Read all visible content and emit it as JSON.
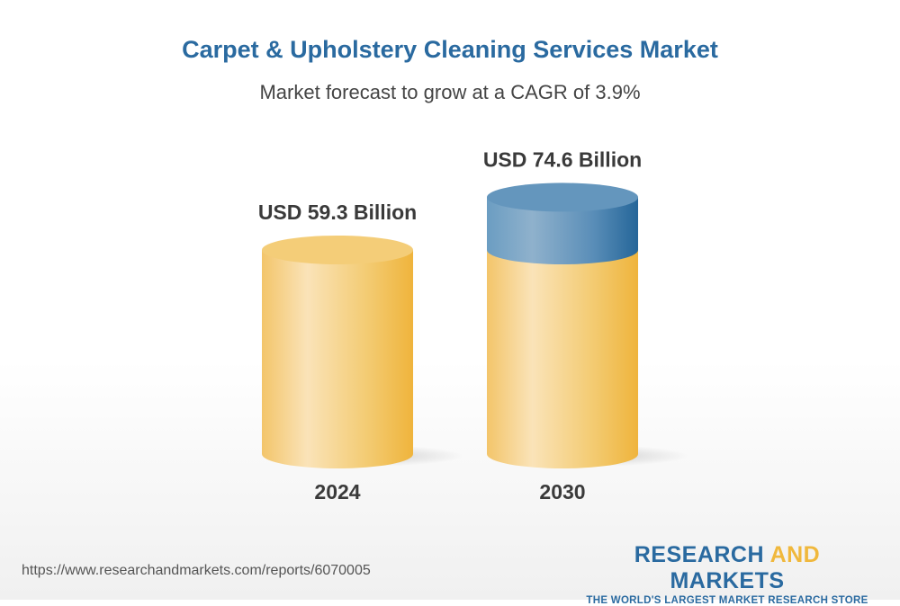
{
  "chart_data": {
    "type": "bar",
    "title": "Carpet & Upholstery Cleaning Services Market",
    "subtitle": "Market forecast to grow at a CAGR of 3.9%",
    "categories": [
      "2024",
      "2030"
    ],
    "values": [
      59.3,
      74.6
    ],
    "data_labels": [
      "USD 59.3 Billion",
      "USD 74.6 Billion"
    ],
    "unit": "USD Billion",
    "style": "3d-cylinder",
    "colors": {
      "base": "#f2bd4a",
      "growth": "#2a6aa0",
      "title": "#2a6aa0"
    }
  },
  "footer": {
    "url": "https://www.researchandmarkets.com/reports/6070005",
    "logo_part1": "RESEARCH ",
    "logo_part2": "AND",
    "logo_part3": " MARKETS",
    "tagline": "THE WORLD'S LARGEST MARKET RESEARCH STORE"
  }
}
